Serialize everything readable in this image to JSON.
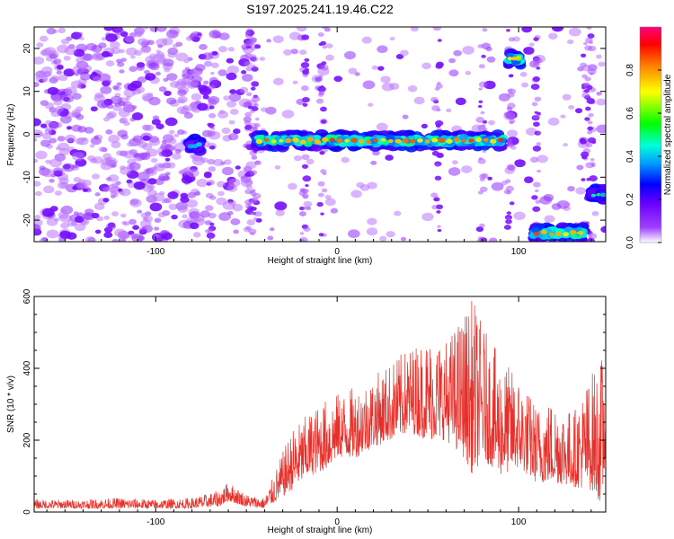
{
  "title": "S197.2025.241.19.46.C22",
  "chart_data": [
    {
      "type": "heatmap",
      "name": "spectrogram",
      "xlabel": "Height of straight line (km)",
      "ylabel": "Frequency (Hz)",
      "xlim": [
        -167,
        148
      ],
      "ylim": [
        -25,
        25
      ],
      "xticks": [
        -100,
        0,
        100
      ],
      "yticks": [
        -20,
        -10,
        0,
        10,
        20
      ],
      "xtick_labels": [
        "-100",
        "0",
        "100"
      ],
      "ytick_labels": [
        "-20",
        "-10",
        "0",
        "10",
        "20"
      ],
      "colorbar": {
        "label": "Normalized spectral amplitude",
        "range": [
          0.0,
          1.0
        ],
        "ticks": [
          0.0,
          0.2,
          0.4,
          0.6,
          0.8
        ],
        "tick_labels": [
          "0.0",
          "0.2",
          "0.4",
          "0.6",
          "0.8"
        ]
      },
      "features": [
        {
          "label": "main tone",
          "x_range": [
            -45,
            92
          ],
          "freq": -1.5,
          "amplitude": 0.9
        },
        {
          "label": "tone segment",
          "x_range": [
            -82,
            -75
          ],
          "freq": -2.5,
          "amplitude": 0.45
        },
        {
          "label": "high tone",
          "x_range": [
            94,
            101
          ],
          "freq": 17.5,
          "amplitude": 0.9
        },
        {
          "label": "low tone",
          "x_range": [
            108,
            136
          ],
          "freq": -23,
          "amplitude": 0.9
        },
        {
          "label": "right edge tone",
          "x_range": [
            140,
            148
          ],
          "freq": -14,
          "amplitude": 0.5
        }
      ]
    },
    {
      "type": "line",
      "name": "snr",
      "xlabel": "Height of straight line (km)",
      "ylabel": "SNR (10 * v/v)",
      "xlim": [
        -167,
        148
      ],
      "ylim": [
        0,
        600
      ],
      "xticks": [
        -100,
        0,
        100
      ],
      "yticks": [
        0,
        200,
        400,
        600
      ],
      "xtick_labels": [
        "-100",
        "0",
        "100"
      ],
      "ytick_labels": [
        "0",
        "200",
        "400",
        "600"
      ],
      "color": "#e8302a",
      "x": [
        -167,
        -140,
        -120,
        -100,
        -80,
        -65,
        -60,
        -50,
        -40,
        -33,
        -25,
        -15,
        -5,
        0,
        10,
        20,
        30,
        40,
        50,
        60,
        70,
        75,
        80,
        90,
        100,
        110,
        120,
        130,
        140,
        146,
        148
      ],
      "y_low": [
        10,
        10,
        10,
        10,
        10,
        15,
        30,
        15,
        10,
        30,
        60,
        100,
        120,
        150,
        150,
        180,
        200,
        220,
        200,
        200,
        150,
        100,
        150,
        100,
        120,
        80,
        80,
        70,
        60,
        20,
        150
      ],
      "y_high": [
        35,
        35,
        40,
        35,
        40,
        60,
        85,
        50,
        40,
        130,
        230,
        280,
        320,
        330,
        350,
        380,
        420,
        460,
        490,
        480,
        560,
        600,
        520,
        430,
        380,
        300,
        320,
        280,
        390,
        440,
        420
      ]
    }
  ]
}
